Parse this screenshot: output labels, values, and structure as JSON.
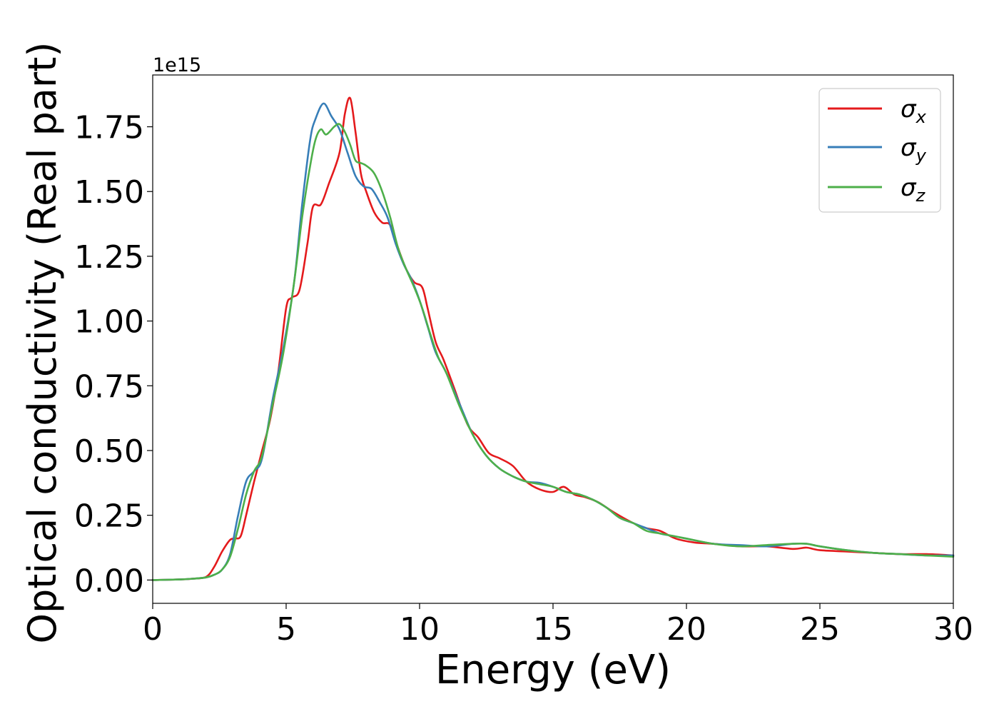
{
  "chart_data": {
    "type": "line",
    "xlabel": "Energy (eV)",
    "ylabel": "Optical conductivity (Real part)",
    "offset_text": "1e15",
    "xlim": [
      0,
      30
    ],
    "ylim": [
      -0.09,
      1.95
    ],
    "y_scale_factor": 1000000000000000.0,
    "grid": false,
    "legend_position": "upper right",
    "xticks": [
      0,
      5,
      10,
      15,
      20,
      25,
      30
    ],
    "xtick_labels": [
      "0",
      "5",
      "10",
      "15",
      "20",
      "25",
      "30"
    ],
    "yticks": [
      0.0,
      0.25,
      0.5,
      0.75,
      1.0,
      1.25,
      1.5,
      1.75
    ],
    "ytick_labels": [
      "0.00",
      "0.25",
      "0.50",
      "0.75",
      "1.00",
      "1.25",
      "1.50",
      "1.75"
    ],
    "series": [
      {
        "name": "σx",
        "legend_symbol": "σ",
        "legend_subscript": "x",
        "color": "#e41a1c",
        "x": [
          0,
          1,
          1.5,
          2,
          2.3,
          2.6,
          2.9,
          3.1,
          3.3,
          3.5,
          3.8,
          4.1,
          4.4,
          4.7,
          5.0,
          5.2,
          5.5,
          5.8,
          6.0,
          6.3,
          6.6,
          7.0,
          7.2,
          7.4,
          7.6,
          7.8,
          8.0,
          8.3,
          8.6,
          8.9,
          9.2,
          9.5,
          9.8,
          10.1,
          10.3,
          10.6,
          10.9,
          11.3,
          11.8,
          12.2,
          12.6,
          13.0,
          13.5,
          14.0,
          14.5,
          15.0,
          15.4,
          15.8,
          16.2,
          16.7,
          17.3,
          18.0,
          18.5,
          19.0,
          19.6,
          20.3,
          21.0,
          22.0,
          23.0,
          24.0,
          24.5,
          25.0,
          26.0,
          27.0,
          28.0,
          29.0,
          30.0
        ],
        "y": [
          0.0,
          0.002,
          0.005,
          0.012,
          0.05,
          0.11,
          0.155,
          0.16,
          0.17,
          0.25,
          0.38,
          0.5,
          0.62,
          0.8,
          1.05,
          1.09,
          1.12,
          1.3,
          1.44,
          1.45,
          1.53,
          1.65,
          1.8,
          1.86,
          1.73,
          1.57,
          1.5,
          1.42,
          1.38,
          1.37,
          1.28,
          1.2,
          1.15,
          1.13,
          1.05,
          0.92,
          0.85,
          0.74,
          0.6,
          0.55,
          0.49,
          0.47,
          0.44,
          0.38,
          0.35,
          0.34,
          0.36,
          0.33,
          0.32,
          0.3,
          0.26,
          0.22,
          0.2,
          0.19,
          0.16,
          0.145,
          0.14,
          0.13,
          0.13,
          0.12,
          0.125,
          0.115,
          0.11,
          0.105,
          0.1,
          0.1,
          0.095
        ]
      },
      {
        "name": "σy",
        "legend_symbol": "σ",
        "legend_subscript": "y",
        "color": "#377eb8",
        "x": [
          0,
          1,
          1.5,
          2,
          2.3,
          2.6,
          2.9,
          3.2,
          3.5,
          3.8,
          4.1,
          4.5,
          4.9,
          5.3,
          5.6,
          5.9,
          6.1,
          6.4,
          6.7,
          7.0,
          7.3,
          7.6,
          7.9,
          8.2,
          8.5,
          8.8,
          9.1,
          9.4,
          9.7,
          10.0,
          10.3,
          10.6,
          11.0,
          11.5,
          12.0,
          12.5,
          13.0,
          13.5,
          14.0,
          14.5,
          15.0,
          15.5,
          16.0,
          16.5,
          17.0,
          17.5,
          18.0,
          18.5,
          19.0,
          19.5,
          20.0,
          21.0,
          22.0,
          23.0,
          24.0,
          24.5,
          25.0,
          26.0,
          27.0,
          28.0,
          29.0,
          30.0
        ],
        "y": [
          0.0,
          0.002,
          0.005,
          0.01,
          0.02,
          0.04,
          0.1,
          0.25,
          0.38,
          0.42,
          0.47,
          0.7,
          0.9,
          1.15,
          1.45,
          1.7,
          1.78,
          1.84,
          1.79,
          1.74,
          1.65,
          1.56,
          1.52,
          1.51,
          1.46,
          1.4,
          1.3,
          1.22,
          1.16,
          1.08,
          0.98,
          0.88,
          0.8,
          0.68,
          0.56,
          0.48,
          0.43,
          0.4,
          0.38,
          0.375,
          0.36,
          0.34,
          0.33,
          0.31,
          0.28,
          0.24,
          0.22,
          0.2,
          0.18,
          0.17,
          0.16,
          0.14,
          0.135,
          0.13,
          0.14,
          0.14,
          0.13,
          0.115,
          0.105,
          0.1,
          0.095,
          0.095
        ]
      },
      {
        "name": "σz",
        "legend_symbol": "σ",
        "legend_subscript": "z",
        "color": "#4daf4a",
        "x": [
          0,
          1,
          1.5,
          2,
          2.3,
          2.6,
          2.9,
          3.2,
          3.5,
          3.8,
          4.1,
          4.5,
          4.9,
          5.3,
          5.6,
          5.9,
          6.1,
          6.3,
          6.5,
          6.8,
          7.0,
          7.2,
          7.4,
          7.6,
          7.8,
          8.0,
          8.3,
          8.6,
          8.9,
          9.2,
          9.5,
          9.8,
          10.1,
          10.4,
          10.7,
          11.0,
          11.5,
          12.0,
          12.5,
          13.0,
          13.5,
          14.0,
          14.5,
          15.0,
          15.5,
          16.0,
          16.5,
          17.0,
          17.5,
          18.0,
          18.5,
          19.0,
          19.5,
          20.0,
          21.0,
          22.0,
          23.0,
          24.0,
          24.5,
          25.0,
          26.0,
          27.0,
          28.0,
          29.0,
          30.0
        ],
        "y": [
          0.0,
          0.002,
          0.005,
          0.01,
          0.02,
          0.04,
          0.09,
          0.2,
          0.33,
          0.42,
          0.48,
          0.68,
          0.88,
          1.15,
          1.4,
          1.6,
          1.7,
          1.74,
          1.72,
          1.75,
          1.76,
          1.73,
          1.68,
          1.62,
          1.61,
          1.6,
          1.57,
          1.5,
          1.4,
          1.28,
          1.2,
          1.13,
          1.05,
          0.95,
          0.86,
          0.8,
          0.67,
          0.56,
          0.48,
          0.43,
          0.4,
          0.38,
          0.37,
          0.36,
          0.34,
          0.33,
          0.31,
          0.28,
          0.24,
          0.22,
          0.19,
          0.18,
          0.17,
          0.16,
          0.14,
          0.13,
          0.135,
          0.14,
          0.14,
          0.13,
          0.115,
          0.105,
          0.1,
          0.095,
          0.09
        ]
      }
    ]
  }
}
